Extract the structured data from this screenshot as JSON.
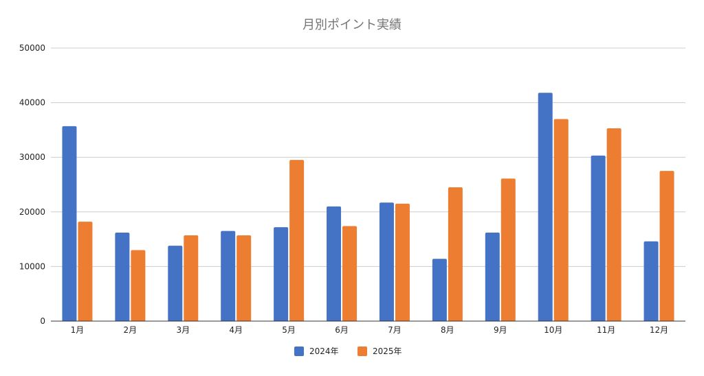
{
  "chart_data": {
    "type": "bar",
    "title": "月別ポイント実績",
    "xlabel": "",
    "ylabel": "",
    "categories": [
      "1月",
      "2月",
      "3月",
      "4月",
      "5月",
      "6月",
      "7月",
      "8月",
      "9月",
      "10月",
      "11月",
      "12月"
    ],
    "series": [
      {
        "name": "2024年",
        "color": "#4472C4",
        "values": [
          35700,
          16200,
          13800,
          16500,
          17200,
          21000,
          21700,
          11400,
          16200,
          41800,
          30300,
          14600
        ]
      },
      {
        "name": "2025年",
        "color": "#ED7D31",
        "values": [
          18200,
          13000,
          15700,
          15700,
          29500,
          17400,
          21500,
          24500,
          26100,
          37000,
          35300,
          27500
        ]
      }
    ],
    "ylim": [
      0,
      50000
    ],
    "yticks": [
      0,
      10000,
      20000,
      30000,
      40000,
      50000
    ],
    "grid": true,
    "legend_position": "bottom"
  }
}
